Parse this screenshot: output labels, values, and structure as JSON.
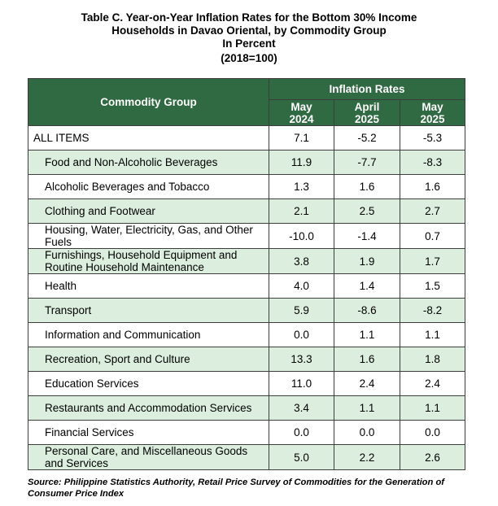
{
  "title": {
    "line1": "Table C. Year-on-Year Inflation Rates for the Bottom 30% Income",
    "line2": "Households in Davao Oriental, by Commodity Group",
    "line3": "In Percent",
    "line4": "(2018=100)"
  },
  "table": {
    "group_header": "Commodity Group",
    "rates_header": "Inflation Rates",
    "columns": [
      {
        "line1": "May",
        "line2": "2024"
      },
      {
        "line1": "April",
        "line2": "2025"
      },
      {
        "line1": "May",
        "line2": "2025"
      }
    ],
    "rows": [
      {
        "label": "ALL ITEMS",
        "v1": "7.1",
        "v2": "-5.2",
        "v3": "-5.3"
      },
      {
        "label": "Food and Non-Alcoholic Beverages",
        "v1": "11.9",
        "v2": "-7.7",
        "v3": "-8.3"
      },
      {
        "label": "Alcoholic Beverages and Tobacco",
        "v1": "1.3",
        "v2": "1.6",
        "v3": "1.6"
      },
      {
        "label": "Clothing and Footwear",
        "v1": "2.1",
        "v2": "2.5",
        "v3": "2.7"
      },
      {
        "label": "Housing, Water, Electricity, Gas, and Other Fuels",
        "v1": "-10.0",
        "v2": "-1.4",
        "v3": "0.7"
      },
      {
        "label": "Furnishings, Household Equipment and Routine Household Maintenance",
        "v1": "3.8",
        "v2": "1.9",
        "v3": "1.7"
      },
      {
        "label": "Health",
        "v1": "4.0",
        "v2": "1.4",
        "v3": "1.5"
      },
      {
        "label": "Transport",
        "v1": "5.9",
        "v2": "-8.6",
        "v3": "-8.2"
      },
      {
        "label": "Information and Communication",
        "v1": "0.0",
        "v2": "1.1",
        "v3": "1.1"
      },
      {
        "label": "Recreation, Sport and Culture",
        "v1": "13.3",
        "v2": "1.6",
        "v3": "1.8"
      },
      {
        "label": "Education Services",
        "v1": "11.0",
        "v2": "2.4",
        "v3": "2.4"
      },
      {
        "label": "Restaurants and Accommodation Services",
        "v1": "3.4",
        "v2": "1.1",
        "v3": "1.1"
      },
      {
        "label": "Financial Services",
        "v1": "0.0",
        "v2": "0.0",
        "v3": "0.0"
      },
      {
        "label": "Personal Care, and Miscellaneous Goods and Services",
        "v1": "5.0",
        "v2": "2.2",
        "v3": "2.6"
      }
    ]
  },
  "source": "Source: Philippine Statistics Authority, Retail Price Survey of Commodities for the Generation of Consumer Price Index",
  "colors": {
    "header_bg": "#2f6a42",
    "shade_bg": "#dcefdf",
    "border": "#3d3d3d"
  }
}
